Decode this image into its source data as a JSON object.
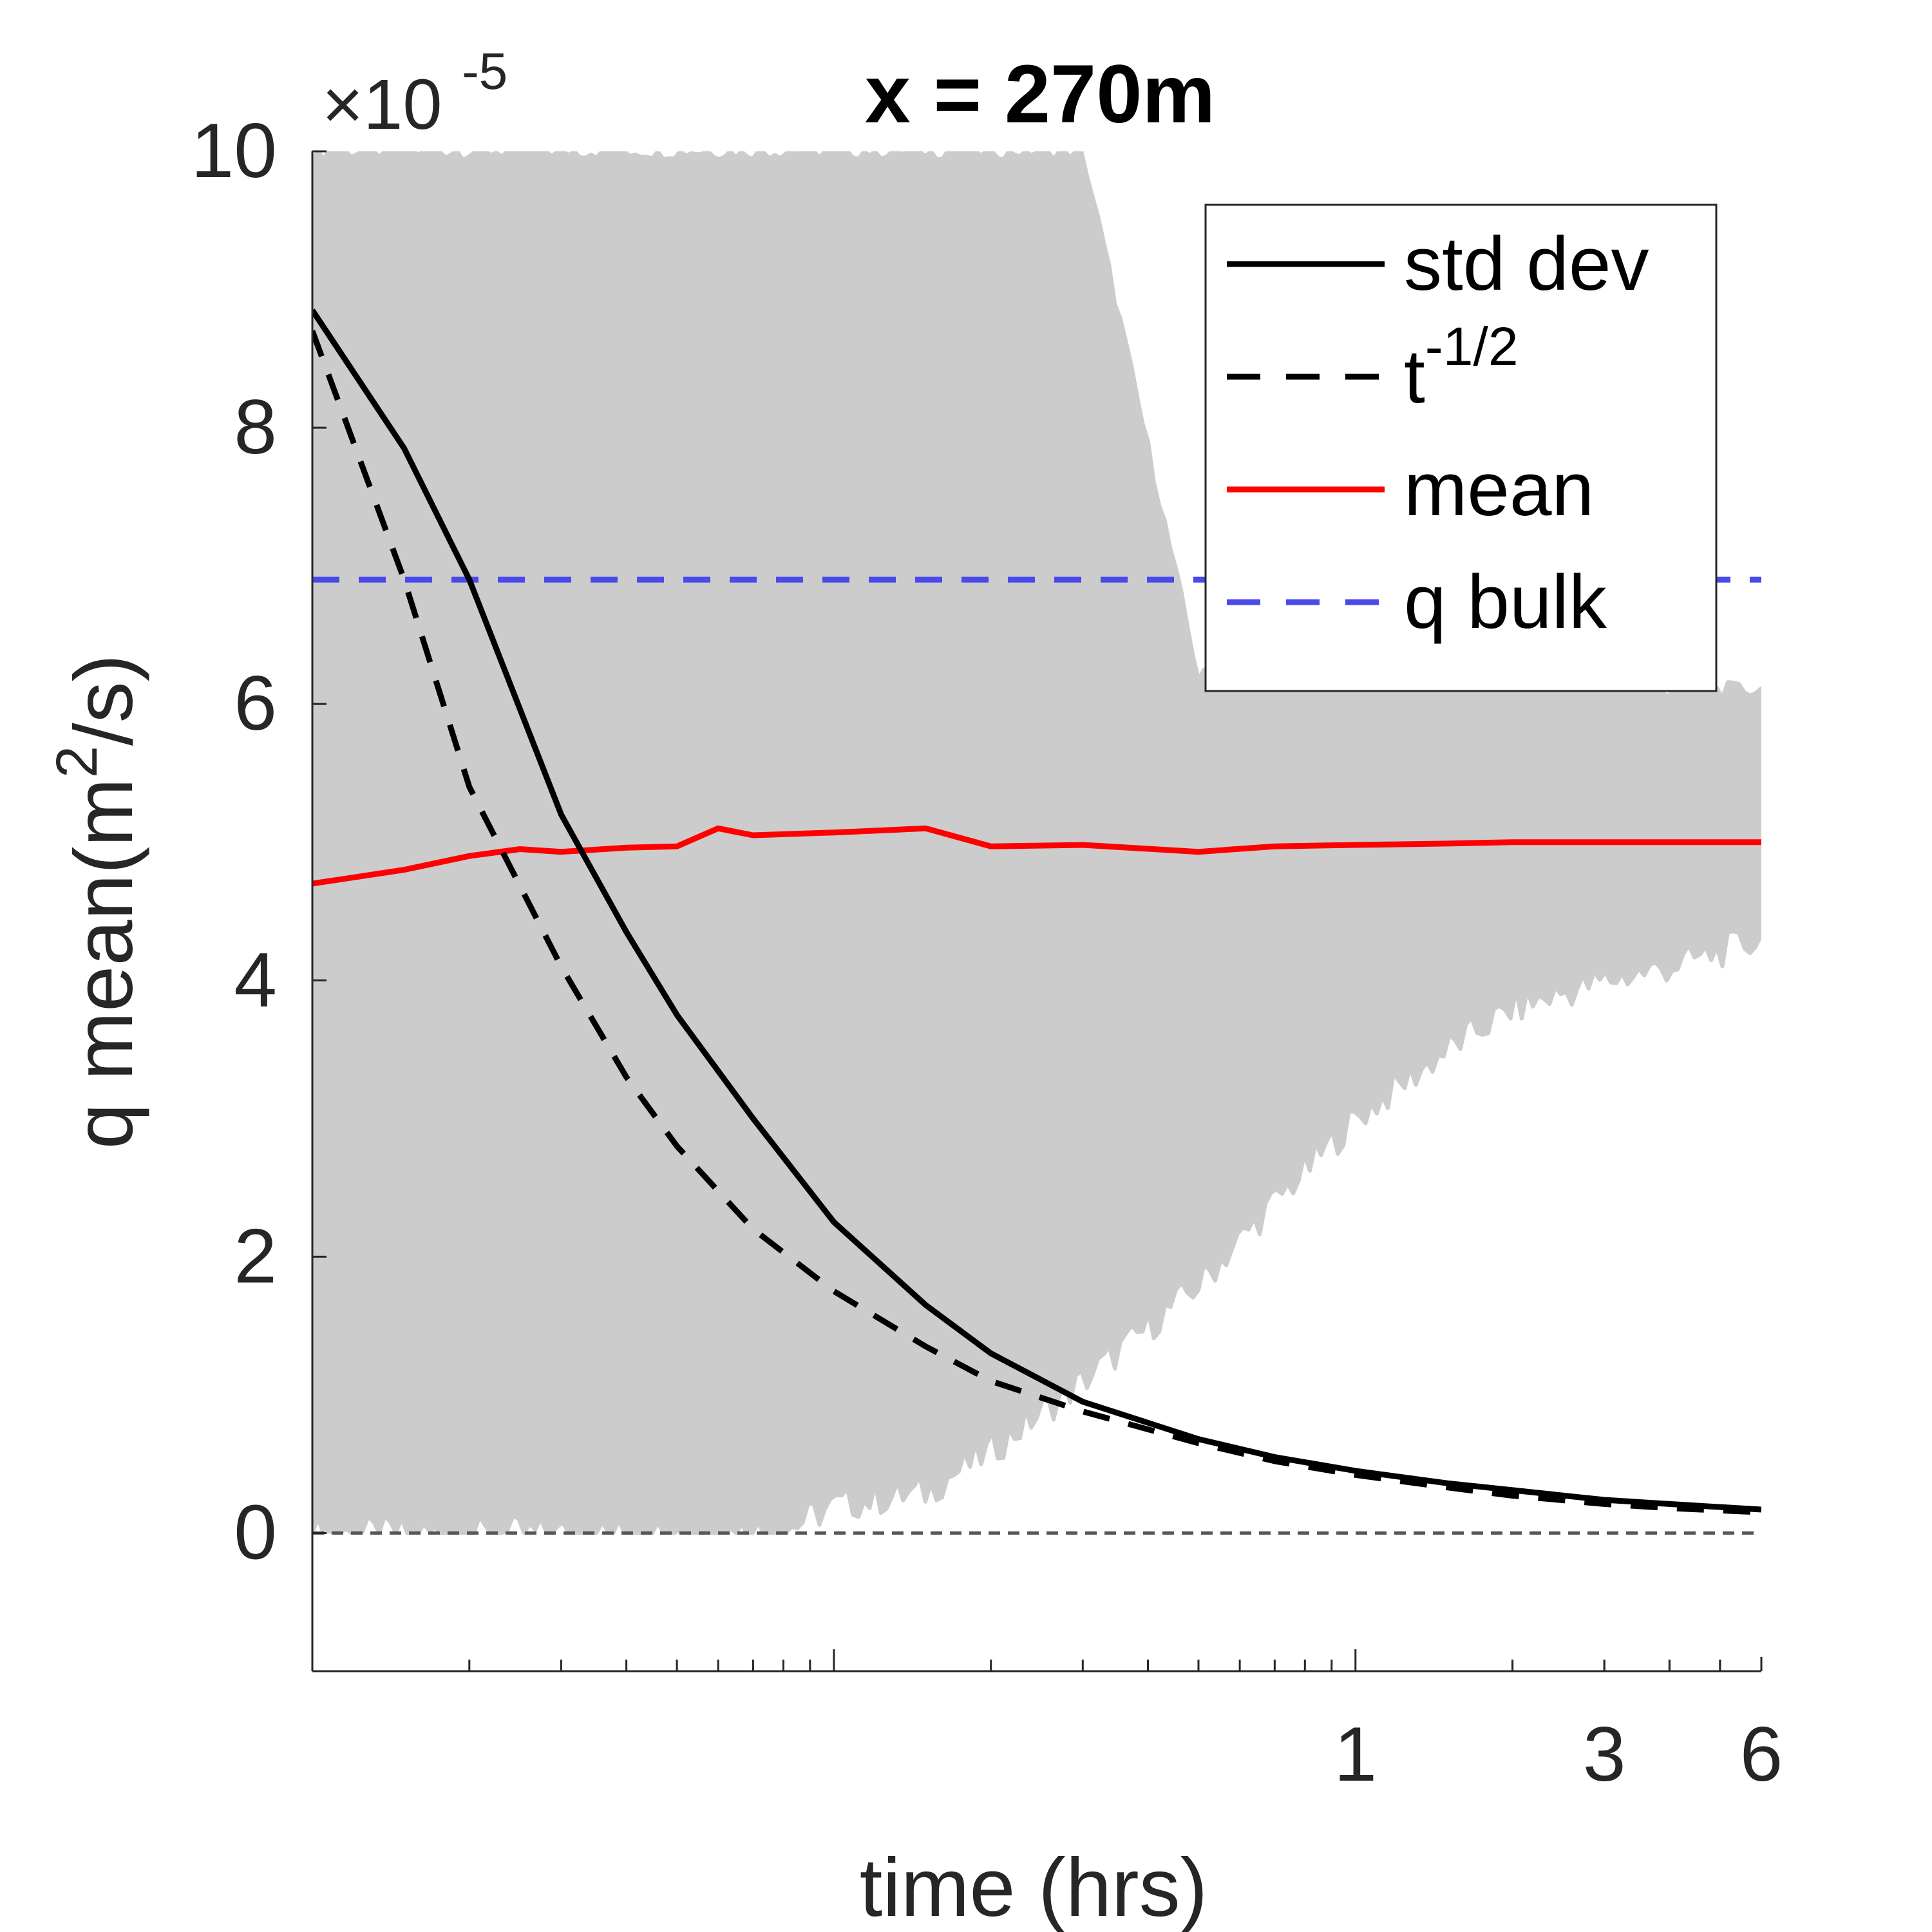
{
  "chart_data": {
    "type": "line",
    "title": "x = 270m",
    "xlabel": "time (hrs)",
    "ylabel": "q mean(m",
    "ylabel_sup": "2",
    "ylabel_end": "/s)",
    "y_multiplier_base": "×10",
    "y_multiplier_exp": "-5",
    "xscale": "log",
    "xlim": [
      0.01,
      6
    ],
    "ylim": [
      -1,
      10
    ],
    "x_ticks": [
      {
        "value": 1,
        "label": "1"
      },
      {
        "value": 3,
        "label": "3"
      },
      {
        "value": 6,
        "label": "6"
      }
    ],
    "y_ticks": [
      {
        "value": 0,
        "label": "0"
      },
      {
        "value": 2,
        "label": "2"
      },
      {
        "value": 4,
        "label": "4"
      },
      {
        "value": 6,
        "label": "6"
      },
      {
        "value": 8,
        "label": "8"
      },
      {
        "value": 10,
        "label": "10"
      }
    ],
    "grid": false,
    "legend_position": "top-right",
    "legend": [
      {
        "label": "std dev",
        "color": "#000000",
        "style": "solid"
      },
      {
        "label": "t",
        "label_sup": "-1/2",
        "color": "#000000",
        "style": "dashed"
      },
      {
        "label": "mean",
        "color": "#ff0000",
        "style": "solid"
      },
      {
        "label": "q bulk",
        "color": "#4a4ae8",
        "style": "dashed"
      }
    ],
    "ensemble_band": {
      "color": "#cccccc",
      "x": [
        0.01,
        0.03,
        0.05,
        0.08,
        0.1,
        0.15,
        0.2,
        0.3,
        0.5,
        0.7,
        1,
        1.5,
        2,
        3,
        4,
        6
      ],
      "lower": [
        0,
        0,
        0,
        0.02,
        0.2,
        0.3,
        0.6,
        1.1,
        1.8,
        2.4,
        3.0,
        3.5,
        3.8,
        4.0,
        4.1,
        4.3
      ],
      "upper": [
        10,
        10,
        10,
        10,
        10,
        10,
        10,
        10,
        6.2,
        6.2,
        6.2,
        6.2,
        6.2,
        6.15,
        6.1,
        6.1
      ]
    },
    "series": [
      {
        "name": "std dev",
        "color": "#000000",
        "style": "solid",
        "x": [
          0.01,
          0.015,
          0.02,
          0.03,
          0.04,
          0.05,
          0.07,
          0.1,
          0.15,
          0.2,
          0.3,
          0.5,
          0.7,
          1,
          1.5,
          2,
          3,
          4,
          6
        ],
        "y": [
          8.85,
          7.85,
          6.9,
          5.2,
          4.35,
          3.75,
          3.0,
          2.25,
          1.65,
          1.3,
          0.95,
          0.68,
          0.55,
          0.45,
          0.36,
          0.31,
          0.24,
          0.21,
          0.17
        ]
      },
      {
        "name": "t^-1/2",
        "color": "#000000",
        "style": "dashed",
        "x": [
          0.01,
          0.015,
          0.02,
          0.03,
          0.04,
          0.05,
          0.07,
          0.1,
          0.15,
          0.2,
          0.3,
          0.5,
          0.7,
          1,
          1.5,
          2,
          3,
          4,
          6
        ],
        "y": [
          8.7,
          6.9,
          5.4,
          4.1,
          3.3,
          2.8,
          2.2,
          1.75,
          1.35,
          1.1,
          0.88,
          0.65,
          0.52,
          0.42,
          0.33,
          0.27,
          0.21,
          0.18,
          0.15
        ]
      },
      {
        "name": "mean",
        "color": "#ff0000",
        "style": "solid",
        "x": [
          0.01,
          0.015,
          0.02,
          0.025,
          0.03,
          0.04,
          0.05,
          0.06,
          0.07,
          0.1,
          0.15,
          0.2,
          0.3,
          0.5,
          0.7,
          1,
          1.5,
          2,
          3,
          4,
          6
        ],
        "y": [
          4.7,
          4.8,
          4.9,
          4.95,
          4.93,
          4.96,
          4.97,
          5.1,
          5.05,
          5.07,
          5.1,
          4.97,
          4.98,
          4.93,
          4.97,
          4.98,
          4.99,
          5.0,
          5.0,
          5.0,
          5.0
        ]
      },
      {
        "name": "q bulk",
        "color": "#4a4ae8",
        "style": "dashed",
        "x": [
          0.01,
          6
        ],
        "y": [
          6.9,
          6.9
        ]
      }
    ],
    "zero_line": {
      "y": 0,
      "color": "#555555",
      "style": "dashed"
    }
  }
}
